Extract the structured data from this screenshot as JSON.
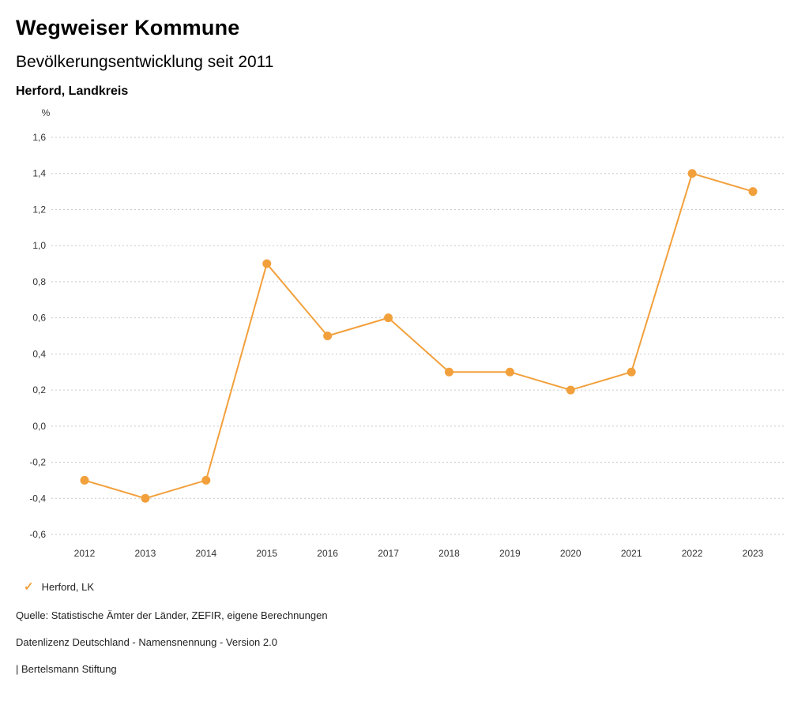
{
  "header": {
    "title": "Wegweiser Kommune",
    "subtitle": "Bevölkerungsentwicklung seit 2011",
    "region": "Herford, Landkreis"
  },
  "chart_data": {
    "type": "line",
    "title": "Bevölkerungsentwicklung seit 2011",
    "unit_label": "%",
    "categories": [
      "2012",
      "2013",
      "2014",
      "2015",
      "2016",
      "2017",
      "2018",
      "2019",
      "2020",
      "2021",
      "2022",
      "2023"
    ],
    "series": [
      {
        "name": "Herford, LK",
        "values": [
          -0.3,
          -0.4,
          -0.3,
          0.9,
          0.5,
          0.6,
          0.3,
          0.3,
          0.2,
          0.3,
          1.4,
          1.3
        ],
        "color": "#F2A03C"
      }
    ],
    "ylim": [
      -0.6,
      1.6
    ],
    "ytick_step": 0.2,
    "decimal_separator": ",",
    "grid": true,
    "gridline_color": "#c9c9c9",
    "tick_label_color": "#333333",
    "legend_position": "bottom-left"
  },
  "legend": {
    "check_icon": "✓",
    "label": "Herford, LK"
  },
  "footer": {
    "source": "Quelle: Statistische Ämter der Länder, ZEFIR, eigene Berechnungen",
    "license": "Datenlizenz Deutschland - Namensnennung - Version 2.0",
    "attribution": "| Bertelsmann Stiftung"
  },
  "colors": {
    "accent": "#F2A03C",
    "background": "#ffffff"
  }
}
